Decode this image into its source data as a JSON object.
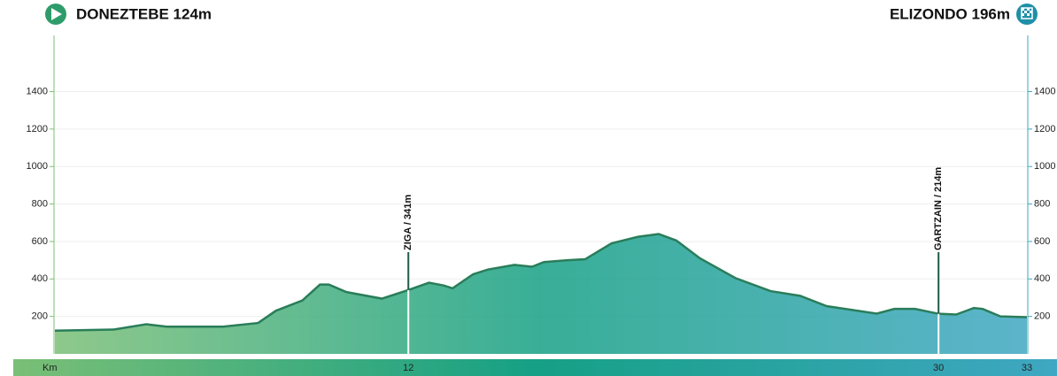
{
  "chart_data": {
    "type": "area",
    "start_label": "DONEZTEBE 124m",
    "end_label": "ELIZONDO 196m",
    "x": [
      0,
      2.0,
      3.1,
      3.8,
      5.7,
      6.9,
      7.5,
      8.4,
      9.0,
      9.3,
      9.9,
      11.1,
      12.0,
      12.7,
      13.2,
      13.5,
      14.2,
      14.7,
      15.6,
      16.2,
      16.6,
      17.4,
      18.0,
      18.9,
      19.8,
      20.5,
      21.1,
      21.9,
      23.1,
      24.3,
      25.3,
      26.2,
      27.9,
      28.5,
      29.2,
      30.0,
      30.6,
      31.2,
      31.5,
      32.1,
      33.0
    ],
    "values": [
      124,
      130,
      158,
      145,
      145,
      165,
      230,
      285,
      370,
      370,
      330,
      295,
      341,
      380,
      365,
      350,
      425,
      450,
      475,
      465,
      490,
      500,
      505,
      590,
      625,
      640,
      605,
      510,
      405,
      335,
      310,
      255,
      215,
      240,
      240,
      214,
      210,
      245,
      240,
      200,
      196
    ],
    "markers": [
      {
        "km": 12,
        "label": "ZIGA / 341m"
      },
      {
        "km": 30,
        "label": "GARTZAIN / 214m"
      }
    ],
    "xlim": [
      0,
      33
    ],
    "xticks": [
      {
        "value": 0,
        "label": "Km"
      },
      12,
      30,
      33
    ],
    "ylim": [
      0,
      1700
    ],
    "yticks": [
      200,
      400,
      600,
      800,
      1000,
      1200,
      1400
    ],
    "grid": true,
    "gradient": [
      "#7abf76",
      "#16a085",
      "#3fa7c2"
    ]
  }
}
